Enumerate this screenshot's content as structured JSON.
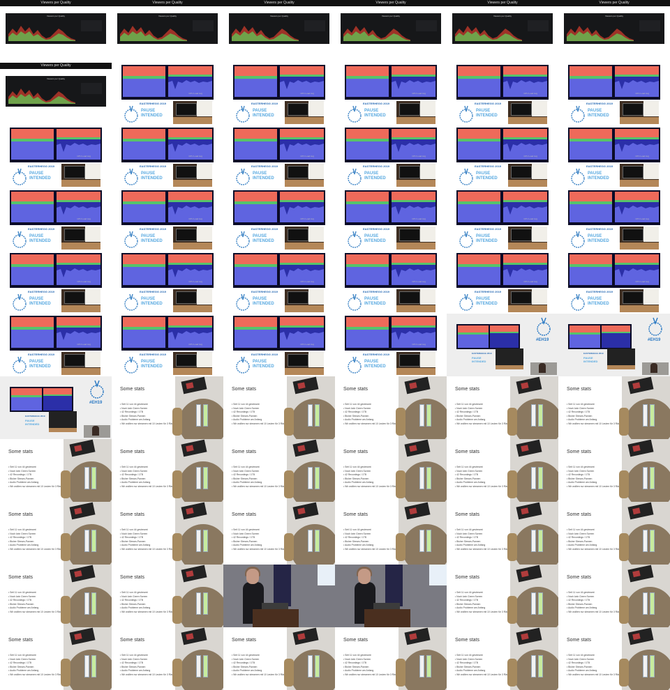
{
  "grid": {
    "columns": 6,
    "rows": 11,
    "cells": [
      "grafana",
      "grafana",
      "grafana",
      "grafana",
      "grafana",
      "grafana",
      "grafana",
      "dash",
      "dash",
      "dash",
      "dash",
      "dash",
      "dash",
      "dash",
      "dash",
      "dash",
      "dash",
      "dash",
      "dash",
      "dash",
      "dash",
      "dash",
      "dash",
      "dash",
      "dash",
      "dash",
      "dash",
      "dash",
      "dash",
      "dash",
      "dash",
      "dash",
      "dash",
      "dash",
      "wide",
      "wide",
      "wide",
      "stats",
      "stats",
      "stats",
      "stats",
      "stats",
      "stats",
      "stats",
      "stats",
      "stats",
      "stats",
      "stats",
      "stats",
      "stats",
      "stats",
      "stats",
      "stats",
      "stats",
      "stats",
      "stats",
      "speaker",
      "speaker",
      "stats",
      "stats",
      "stats",
      "stats",
      "stats",
      "stats",
      "stats",
      "stats"
    ]
  },
  "frames": {
    "grafana": {
      "bar_title": "Viewers per Quality",
      "panel_title": "Viewers per Quality",
      "colors": {
        "bg": "#161719",
        "red": "#c0392b",
        "green": "#6fa24a"
      }
    },
    "dash": {
      "event_label": "EASTERHEGG 2019",
      "pause_line1": "PAUSE",
      "pause_line2": "INTENDED",
      "chart_caption": "CPU Load Avg"
    },
    "wide": {
      "hashtag": "#EH19",
      "event_label": "EASTERHEGG 2019",
      "pause_line1": "PAUSE",
      "pause_line2": "INTENDED"
    },
    "stats": {
      "title": "Some stats",
      "bullets": [
        "Seit 11 von 44 gestreamt",
        "Noch kein Green Screen",
        "42 Recordings / 1TB",
        "Bisher Stream-Pannen",
        "Audio Probleme am Anfang",
        "Wir wollten nur streamen mit 10 Leuten für 3 Räume"
      ]
    }
  }
}
